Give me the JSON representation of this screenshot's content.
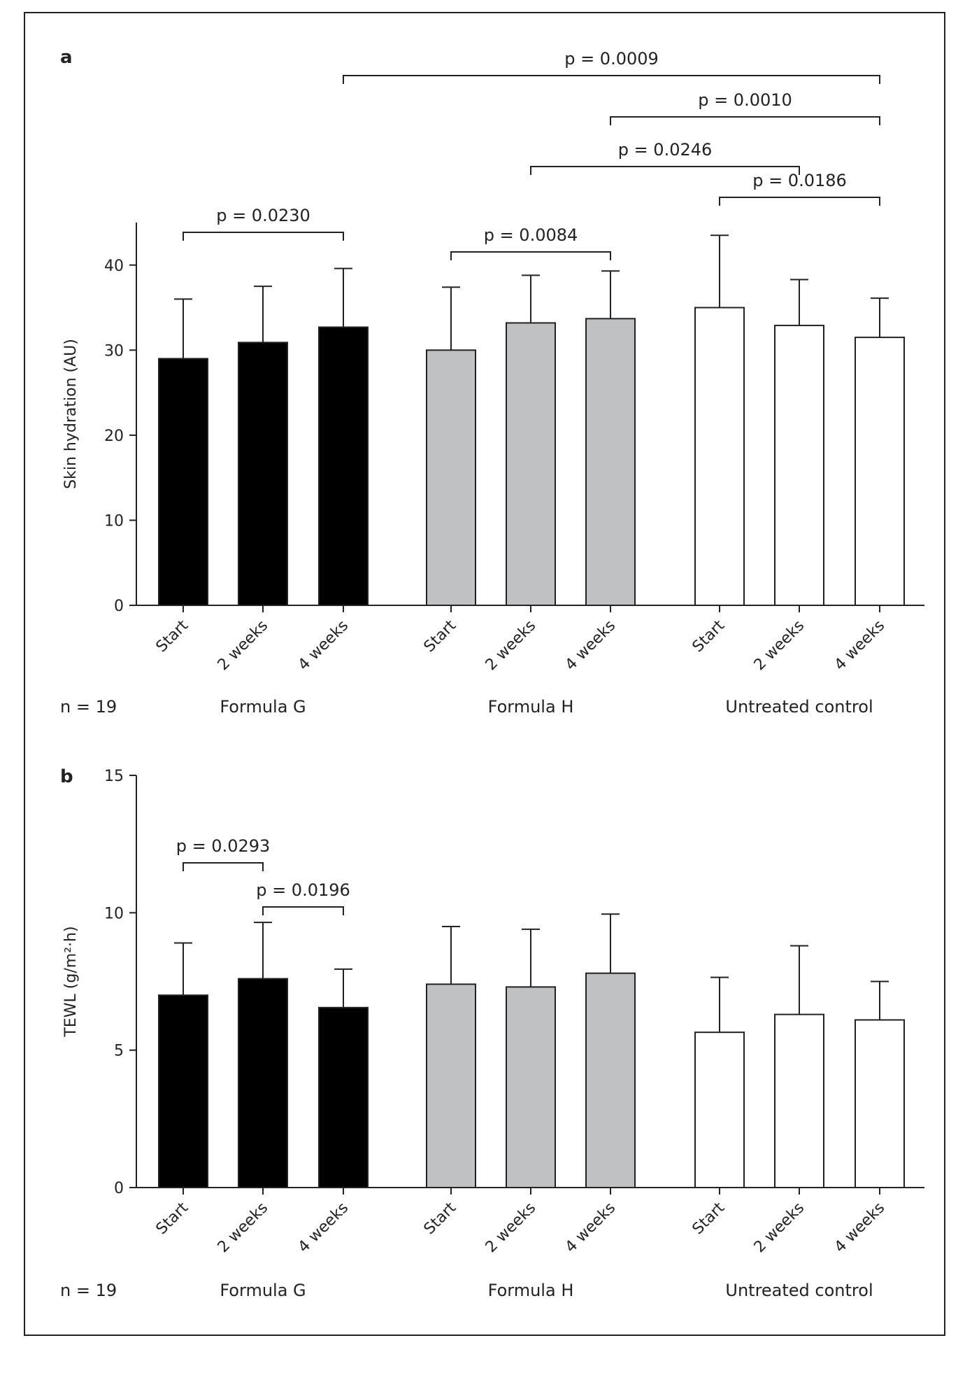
{
  "chart_data": [
    {
      "panel": "a",
      "type": "bar",
      "ylabel": "Skin hydration (AU)",
      "ylim": [
        0,
        45
      ],
      "yticks": [
        0,
        10,
        20,
        30,
        40
      ],
      "categories": [
        "Start",
        "2 weeks",
        "4 weeks"
      ],
      "groups": [
        {
          "name": "Formula G",
          "color": "#000000",
          "values": [
            29.0,
            30.9,
            32.7
          ],
          "errors": [
            7.0,
            6.6,
            6.9
          ]
        },
        {
          "name": "Formula H",
          "color": "#c0c1c3",
          "values": [
            30.0,
            33.2,
            33.7
          ],
          "errors": [
            7.4,
            5.6,
            5.6
          ]
        },
        {
          "name": "Untreated control",
          "color": "#ffffff",
          "values": [
            35.0,
            32.9,
            31.5
          ],
          "errors": [
            8.5,
            5.4,
            4.6
          ]
        }
      ],
      "n_label": "n = 19",
      "annotations": [
        {
          "text": "p = 0.0009",
          "from": [
            0,
            2
          ],
          "to": [
            2,
            2
          ]
        },
        {
          "text": "p = 0.0010",
          "from": [
            1,
            2
          ],
          "to": [
            2,
            2
          ]
        },
        {
          "text": "p = 0.0246",
          "from": [
            1,
            1
          ],
          "to": [
            2,
            1
          ]
        },
        {
          "text": "p = 0.0186",
          "from": [
            2,
            0
          ],
          "to": [
            2,
            2
          ]
        },
        {
          "text": "p = 0.0230",
          "from": [
            0,
            0
          ],
          "to": [
            0,
            2
          ]
        },
        {
          "text": "p = 0.0084",
          "from": [
            1,
            0
          ],
          "to": [
            1,
            2
          ]
        }
      ]
    },
    {
      "panel": "b",
      "type": "bar",
      "ylabel": "TEWL (g/m²·h)",
      "ylim": [
        0,
        15
      ],
      "yticks": [
        0,
        5,
        10,
        15
      ],
      "categories": [
        "Start",
        "2 weeks",
        "4 weeks"
      ],
      "groups": [
        {
          "name": "Formula G",
          "color": "#000000",
          "values": [
            7.0,
            7.6,
            6.55
          ],
          "errors": [
            1.9,
            2.05,
            1.4
          ]
        },
        {
          "name": "Formula H",
          "color": "#c0c1c3",
          "values": [
            7.4,
            7.3,
            7.8
          ],
          "errors": [
            2.1,
            2.1,
            2.15
          ]
        },
        {
          "name": "Untreated control",
          "color": "#ffffff",
          "values": [
            5.65,
            6.3,
            6.1
          ],
          "errors": [
            2.0,
            2.5,
            1.4
          ]
        }
      ],
      "n_label": "n = 19",
      "annotations": [
        {
          "text": "p = 0.0293",
          "from": [
            0,
            0
          ],
          "to": [
            0,
            1
          ]
        },
        {
          "text": "p = 0.0196",
          "from": [
            0,
            1
          ],
          "to": [
            0,
            2
          ]
        }
      ]
    }
  ]
}
